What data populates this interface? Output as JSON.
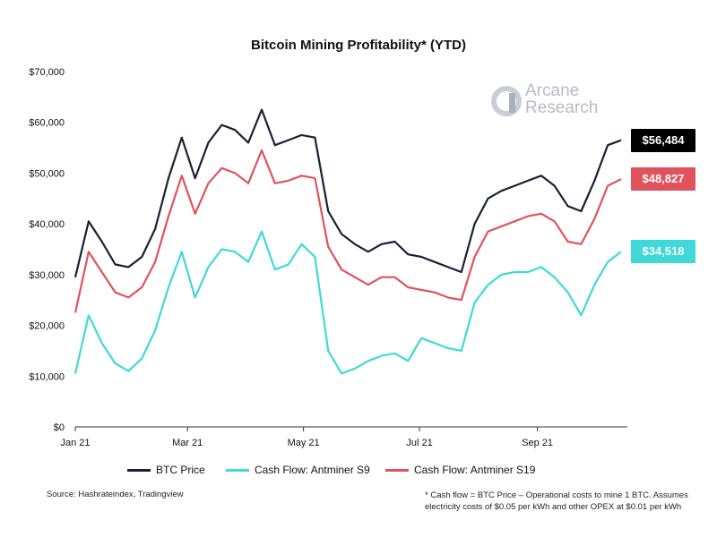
{
  "chart_data": {
    "type": "line",
    "title": "Bitcoin Mining Profitability* (YTD)",
    "xlabel": "",
    "ylabel": "",
    "ylim": [
      0,
      70000
    ],
    "yticks": [
      "$0",
      "$10,000",
      "$20,000",
      "$30,000",
      "$40,000",
      "$50,000",
      "$60,000",
      "$70,000"
    ],
    "xticks": [
      "Jan 21",
      "Mar 21",
      "May 21",
      "Jul 21",
      "Sep 21"
    ],
    "xtick_days": [
      0,
      59,
      120,
      181,
      243
    ],
    "x_days": [
      0,
      7,
      14,
      21,
      28,
      35,
      42,
      49,
      56,
      63,
      70,
      77,
      84,
      91,
      98,
      105,
      112,
      119,
      126,
      133,
      140,
      147,
      154,
      161,
      168,
      175,
      182,
      189,
      196,
      203,
      210,
      217,
      224,
      231,
      238,
      245,
      252,
      259,
      266,
      273,
      280,
      287
    ],
    "series": [
      {
        "name": "BTC Price",
        "color": "#1a2034",
        "values": [
          29500,
          40500,
          36500,
          32000,
          31500,
          33500,
          39000,
          49000,
          57000,
          49000,
          56000,
          59500,
          58500,
          56000,
          62500,
          55500,
          56500,
          57500,
          57000,
          42500,
          38000,
          36000,
          34500,
          36000,
          36500,
          34000,
          33500,
          32500,
          31500,
          30500,
          40000,
          45000,
          46500,
          47500,
          48500,
          49500,
          47500,
          43500,
          42500,
          48500,
          55500,
          56484
        ],
        "end_label": "$56,484"
      },
      {
        "name": "Cash Flow: Antminer S19",
        "color": "#e0525c",
        "values": [
          22500,
          34500,
          30500,
          26500,
          25500,
          27500,
          32500,
          41500,
          49500,
          42000,
          48000,
          51000,
          50000,
          48000,
          54500,
          48000,
          48500,
          49500,
          49000,
          35500,
          31000,
          29500,
          28000,
          29500,
          29500,
          27500,
          27000,
          26500,
          25500,
          25000,
          33500,
          38500,
          39500,
          40500,
          41500,
          42000,
          40500,
          36500,
          36000,
          41000,
          47500,
          48827
        ],
        "end_label": "$48,827"
      },
      {
        "name": "Cash Flow: Antminer S9",
        "color": "#3fd9d9",
        "values": [
          10500,
          22000,
          16500,
          12500,
          11000,
          13500,
          19000,
          27500,
          34500,
          25500,
          31500,
          35000,
          34500,
          32500,
          38500,
          31000,
          32000,
          36000,
          33500,
          15000,
          10500,
          11500,
          13000,
          14000,
          14500,
          13000,
          17500,
          16500,
          15500,
          15000,
          24500,
          28000,
          30000,
          30500,
          30500,
          31500,
          29500,
          26500,
          22000,
          28000,
          32500,
          34518
        ],
        "end_label": "$34,518"
      }
    ],
    "legend": "bottom",
    "grid": false
  },
  "logo": {
    "line1": "Arcane",
    "line2": "Research"
  },
  "source": "Source: Hashrateindex, Tradingview",
  "footnote": {
    "line1": "* Cash flow = BTC Price – Operational costs to mine 1 BTC. Assumes",
    "line2": "electricity costs of $0.05 per kWh and other OPEX at $0.01 per kWh"
  }
}
